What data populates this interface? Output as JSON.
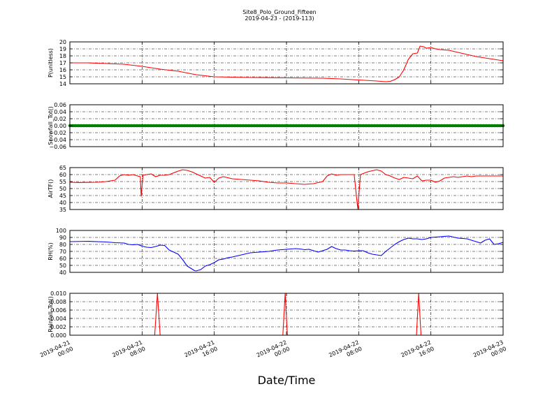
{
  "figure": {
    "title_line1": "Site8_Polo_Ground_Fifteen",
    "title_line2": "2019-04-23 - (2019-113)",
    "xlabel": "Date/Time"
  },
  "chart_data": {
    "type": "line",
    "x_range_hours": [
      0,
      48
    ],
    "x_ticks": [
      {
        "hour": 0,
        "line1": "2019-04-21",
        "line2": "00:00"
      },
      {
        "hour": 8,
        "line1": "2019-04-21",
        "line2": "08:00"
      },
      {
        "hour": 16,
        "line1": "2019-04-21",
        "line2": "16:00"
      },
      {
        "hour": 24,
        "line1": "2019-04-22",
        "line2": "00:00"
      },
      {
        "hour": 32,
        "line1": "2019-04-22",
        "line2": "08:00"
      },
      {
        "hour": 40,
        "line1": "2019-04-22",
        "line2": "16:00"
      },
      {
        "hour": 48,
        "line1": "2019-04-23",
        "line2": "00:00"
      }
    ],
    "grid": true,
    "panels": [
      {
        "ylabel": "P(unitless)",
        "color": "#ff0000",
        "ylim": [
          14,
          20
        ],
        "yticks": [
          14,
          15,
          16,
          17,
          18,
          19,
          20
        ],
        "tick_labels": [
          "14",
          "15",
          "16",
          "17",
          "18",
          "19",
          "20"
        ],
        "points": [
          [
            0,
            17.0
          ],
          [
            2,
            17.0
          ],
          [
            4,
            16.9
          ],
          [
            6,
            16.8
          ],
          [
            8,
            16.5
          ],
          [
            10,
            16.1
          ],
          [
            12,
            15.8
          ],
          [
            14,
            15.3
          ],
          [
            16,
            15.0
          ],
          [
            18,
            14.95
          ],
          [
            20,
            14.9
          ],
          [
            24,
            14.85
          ],
          [
            28,
            14.8
          ],
          [
            30,
            14.7
          ],
          [
            32,
            14.55
          ],
          [
            34,
            14.4
          ],
          [
            35,
            14.3
          ],
          [
            35.5,
            14.35
          ],
          [
            36,
            14.6
          ],
          [
            36.5,
            15.0
          ],
          [
            37,
            16.0
          ],
          [
            37.5,
            17.5
          ],
          [
            38,
            18.3
          ],
          [
            38.5,
            18.4
          ],
          [
            38.8,
            19.4
          ],
          [
            39.2,
            19.3
          ],
          [
            39.5,
            19.1
          ],
          [
            40,
            19.2
          ],
          [
            40.5,
            19.0
          ],
          [
            41,
            18.9
          ],
          [
            42,
            18.8
          ],
          [
            43,
            18.5
          ],
          [
            44,
            18.2
          ],
          [
            45,
            17.9
          ],
          [
            46,
            17.7
          ],
          [
            47,
            17.5
          ],
          [
            48,
            17.3
          ]
        ]
      },
      {
        "ylabel": "Snowfall_Tot()",
        "color": "#008000",
        "ylim": [
          -0.06,
          0.06
        ],
        "yticks": [
          -0.06,
          -0.04,
          -0.02,
          0.0,
          0.02,
          0.04,
          0.06
        ],
        "tick_labels": [
          "−0.06",
          "−0.04",
          "−0.02",
          "0.00",
          "0.02",
          "0.04",
          "0.06"
        ],
        "marker_line": true,
        "points": [
          [
            0,
            0
          ],
          [
            48,
            0
          ]
        ]
      },
      {
        "ylabel": "AirTF()",
        "color": "#ff0000",
        "ylim": [
          35,
          65
        ],
        "yticks": [
          35,
          40,
          45,
          50,
          55,
          60,
          65
        ],
        "tick_labels": [
          "35",
          "40",
          "45",
          "50",
          "55",
          "60",
          "65"
        ],
        "points": [
          [
            0,
            54.5
          ],
          [
            1,
            54.3
          ],
          [
            2,
            54.4
          ],
          [
            3,
            54.5
          ],
          [
            4,
            55.0
          ],
          [
            5,
            56.0
          ],
          [
            5.5,
            59.0
          ],
          [
            6,
            60.0
          ],
          [
            6.5,
            59.5
          ],
          [
            7,
            60.0
          ],
          [
            7.5,
            59.0
          ],
          [
            7.8,
            58.5
          ],
          [
            7.9,
            44.5
          ],
          [
            8.1,
            59.5
          ],
          [
            8.5,
            60.0
          ],
          [
            9,
            60.5
          ],
          [
            9.5,
            58.5
          ],
          [
            10,
            59.5
          ],
          [
            10.5,
            59.5
          ],
          [
            11,
            60.0
          ],
          [
            12,
            62.5
          ],
          [
            12.5,
            63.5
          ],
          [
            13,
            63.0
          ],
          [
            13.5,
            62.0
          ],
          [
            14,
            60.5
          ],
          [
            14.5,
            59.0
          ],
          [
            15,
            57.5
          ],
          [
            15.5,
            58.0
          ],
          [
            16,
            54.5
          ],
          [
            16.5,
            57.5
          ],
          [
            17,
            58.5
          ],
          [
            18,
            57.0
          ],
          [
            19,
            56.5
          ],
          [
            20,
            56.0
          ],
          [
            21,
            55.5
          ],
          [
            22,
            54.5
          ],
          [
            23,
            54.0
          ],
          [
            24,
            54.0
          ],
          [
            25,
            53.5
          ],
          [
            26,
            53.0
          ],
          [
            27,
            53.5
          ],
          [
            28,
            55.0
          ],
          [
            28.5,
            59.0
          ],
          [
            29,
            60.5
          ],
          [
            29.5,
            59.5
          ],
          [
            30,
            60.0
          ],
          [
            31,
            60.0
          ],
          [
            31.5,
            60.0
          ],
          [
            31.9,
            35.5
          ],
          [
            32.2,
            60.0
          ],
          [
            33,
            62.0
          ],
          [
            34,
            63.5
          ],
          [
            34.5,
            62.5
          ],
          [
            35,
            60.0
          ],
          [
            35.5,
            59.0
          ],
          [
            36,
            57.5
          ],
          [
            36.5,
            56.5
          ],
          [
            37,
            58.0
          ],
          [
            37.5,
            57.5
          ],
          [
            38,
            57.0
          ],
          [
            38.5,
            59.0
          ],
          [
            39,
            55.5
          ],
          [
            39.5,
            56.0
          ],
          [
            40,
            56.0
          ],
          [
            40.5,
            54.5
          ],
          [
            41,
            55.5
          ],
          [
            41.5,
            57.5
          ],
          [
            42,
            58.0
          ],
          [
            42.5,
            58.5
          ],
          [
            43,
            58.0
          ],
          [
            43.5,
            58.5
          ],
          [
            44,
            59.0
          ],
          [
            44.5,
            58.5
          ],
          [
            45,
            59.0
          ],
          [
            46,
            59.0
          ],
          [
            47,
            59.0
          ],
          [
            48,
            59.0
          ]
        ]
      },
      {
        "ylabel": "RH(%)",
        "color": "#0000ff",
        "ylim": [
          40,
          100
        ],
        "yticks": [
          40,
          50,
          60,
          70,
          80,
          90,
          100
        ],
        "tick_labels": [
          "40",
          "50",
          "60",
          "70",
          "80",
          "90",
          "100"
        ],
        "points": [
          [
            0,
            84
          ],
          [
            2,
            84.5
          ],
          [
            4,
            83.5
          ],
          [
            5,
            82.5
          ],
          [
            6,
            82
          ],
          [
            6.5,
            80
          ],
          [
            7,
            79.5
          ],
          [
            7.5,
            80
          ],
          [
            8,
            77.5
          ],
          [
            8.5,
            76
          ],
          [
            9,
            75.5
          ],
          [
            9.5,
            77
          ],
          [
            10,
            79
          ],
          [
            10.5,
            78.5
          ],
          [
            11,
            72
          ],
          [
            11.5,
            69
          ],
          [
            12,
            66
          ],
          [
            12.5,
            58
          ],
          [
            13,
            49
          ],
          [
            13.5,
            45
          ],
          [
            13.8,
            42.5
          ],
          [
            14,
            42
          ],
          [
            14.5,
            44
          ],
          [
            15,
            49
          ],
          [
            15.5,
            51
          ],
          [
            16,
            54
          ],
          [
            16.5,
            58
          ],
          [
            17,
            59
          ],
          [
            17.5,
            61
          ],
          [
            18,
            62
          ],
          [
            19,
            65
          ],
          [
            20,
            68
          ],
          [
            21,
            69
          ],
          [
            22,
            70
          ],
          [
            23,
            72
          ],
          [
            24,
            73
          ],
          [
            25,
            74
          ],
          [
            25.5,
            73.5
          ],
          [
            26,
            72.5
          ],
          [
            26.5,
            73
          ],
          [
            27,
            71
          ],
          [
            27.5,
            69
          ],
          [
            28,
            71
          ],
          [
            28.5,
            73
          ],
          [
            29,
            77
          ],
          [
            29.5,
            74
          ],
          [
            30,
            72
          ],
          [
            30.5,
            72
          ],
          [
            31,
            71
          ],
          [
            31.5,
            70.5
          ],
          [
            32,
            71
          ],
          [
            32.5,
            71
          ],
          [
            33,
            68
          ],
          [
            33.5,
            66
          ],
          [
            34,
            65
          ],
          [
            34.5,
            64
          ],
          [
            35,
            70
          ],
          [
            35.5,
            75
          ],
          [
            36,
            80
          ],
          [
            36.5,
            84
          ],
          [
            37,
            87
          ],
          [
            37.5,
            89
          ],
          [
            38,
            88
          ],
          [
            38.5,
            88
          ],
          [
            39,
            87
          ],
          [
            39.5,
            88
          ],
          [
            40,
            90
          ],
          [
            41,
            91
          ],
          [
            42,
            92
          ],
          [
            43,
            89
          ],
          [
            44,
            88
          ],
          [
            45,
            84
          ],
          [
            45.5,
            82
          ],
          [
            46,
            86
          ],
          [
            46.5,
            88
          ],
          [
            47,
            80
          ],
          [
            47.5,
            81
          ],
          [
            48,
            83
          ]
        ]
      },
      {
        "ylabel": "Rainfall_Tot()",
        "color": "#ff0000",
        "ylim": [
          0,
          0.01
        ],
        "yticks": [
          0,
          0.002,
          0.004,
          0.006,
          0.008,
          0.01
        ],
        "tick_labels": [
          "0.000",
          "0.002",
          "0.004",
          "0.006",
          "0.008",
          "0.010"
        ],
        "points": [
          [
            0,
            0
          ],
          [
            9.4,
            0
          ],
          [
            9.7,
            0.01
          ],
          [
            10.0,
            0
          ],
          [
            23.6,
            0
          ],
          [
            23.85,
            0.01
          ],
          [
            24.1,
            0
          ],
          [
            38.4,
            0
          ],
          [
            38.65,
            0.01
          ],
          [
            38.9,
            0
          ],
          [
            48,
            0
          ]
        ]
      }
    ]
  }
}
